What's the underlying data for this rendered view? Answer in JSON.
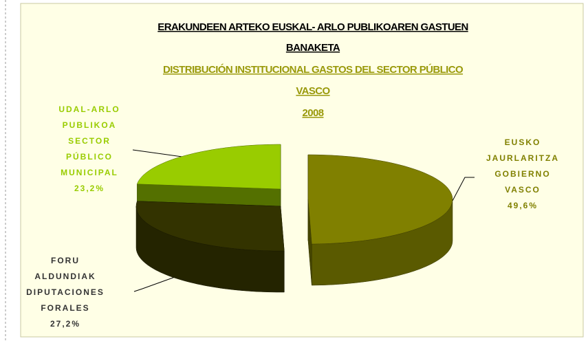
{
  "chart_data": {
    "type": "pie",
    "title": [
      "ERAKUNDEEN ARTEKO EUSKAL- ARLO PUBLIKOAREN GASTUEN",
      "BANAKETA"
    ],
    "subtitle": [
      "DISTRIBUCIÓN INSTITUCIONAL GASTOS DEL SECTOR PÚBLICO",
      "VASCO",
      "2008"
    ],
    "categories": [
      [
        "EUSKO",
        "JAURLARITZA",
        "GOBIERNO",
        "VASCO"
      ],
      [
        "FORU",
        "ALDUNDIAK",
        "DIPUTACIONES",
        "FORALES"
      ],
      [
        "UDAL-ARLO",
        "PUBLIKOA",
        "SECTOR",
        "PÚBLICO",
        "MUNICIPAL"
      ]
    ],
    "values": [
      49.6,
      27.2,
      23.2
    ],
    "value_labels": [
      "49,6%",
      "27,2%",
      "23,2%"
    ],
    "colors": [
      "#808000",
      "#333300",
      "#99cc00"
    ],
    "label_colors": [
      "#808000",
      "#333333",
      "#99cc00"
    ]
  }
}
